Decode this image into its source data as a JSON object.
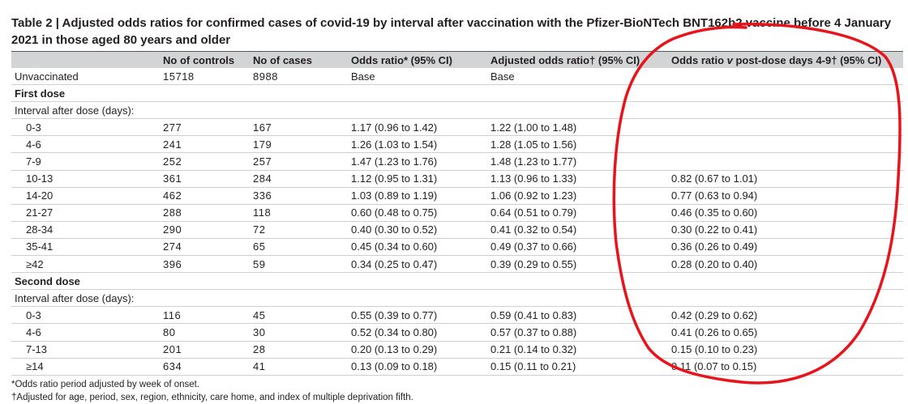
{
  "table": {
    "title": "Table 2 | Adjusted odds ratios for confirmed cases of covid-19 by interval after vaccination with the Pfizer-BioNTech BNT162b2 vaccine before 4 January 2021 in those aged 80 years and older",
    "headers": [
      "",
      "No of controls",
      "No of cases",
      "Odds ratio* (95% CI)",
      "Adjusted odds ratio† (95% CI)",
      "Odds ratio v post-dose days 4-9† (95% CI)"
    ],
    "unvaccinated": {
      "label": "Unvaccinated",
      "controls": "15718",
      "cases": "8988",
      "or": "Base",
      "aor": "Base",
      "or_v": ""
    },
    "first_dose": {
      "label": "First dose",
      "subheader": "Interval after dose (days):",
      "rows": [
        {
          "interval": "0-3",
          "controls": "277",
          "cases": "167",
          "or": "1.17 (0.96 to 1.42)",
          "aor": "1.22 (1.00 to 1.48)",
          "or_v": ""
        },
        {
          "interval": "4-6",
          "controls": "241",
          "cases": "179",
          "or": "1.26 (1.03 to 1.54)",
          "aor": "1.28 (1.05 to 1.56)",
          "or_v": ""
        },
        {
          "interval": "7-9",
          "controls": "252",
          "cases": "257",
          "or": "1.47 (1.23 to 1.76)",
          "aor": "1.48 (1.23 to 1.77)",
          "or_v": ""
        },
        {
          "interval": "10-13",
          "controls": "361",
          "cases": "284",
          "or": "1.12 (0.95 to 1.31)",
          "aor": "1.13 (0.96 to 1.33)",
          "or_v": "0.82 (0.67 to 1.01)"
        },
        {
          "interval": "14-20",
          "controls": "462",
          "cases": "336",
          "or": "1.03 (0.89 to 1.19)",
          "aor": "1.06 (0.92 to 1.23)",
          "or_v": "0.77 (0.63 to 0.94)"
        },
        {
          "interval": "21-27",
          "controls": "288",
          "cases": "118",
          "or": "0.60 (0.48 to 0.75)",
          "aor": "0.64 (0.51 to 0.79)",
          "or_v": "0.46 (0.35 to 0.60)"
        },
        {
          "interval": "28-34",
          "controls": "290",
          "cases": "72",
          "or": "0.40 (0.30 to 0.52)",
          "aor": "0.41 (0.32 to 0.54)",
          "or_v": "0.30 (0.22 to 0.41)"
        },
        {
          "interval": "35-41",
          "controls": "274",
          "cases": "65",
          "or": "0.45 (0.34 to 0.60)",
          "aor": "0.49 (0.37 to 0.66)",
          "or_v": "0.36 (0.26 to 0.49)"
        },
        {
          "interval": "≥42",
          "controls": "396",
          "cases": "59",
          "or": "0.34 (0.25 to 0.47)",
          "aor": "0.39 (0.29 to 0.55)",
          "or_v": "0.28 (0.20 to 0.40)"
        }
      ]
    },
    "second_dose": {
      "label": "Second dose",
      "subheader": "Interval after dose (days):",
      "rows": [
        {
          "interval": "0-3",
          "controls": "116",
          "cases": "45",
          "or": "0.55 (0.39 to 0.77)",
          "aor": "0.59 (0.41 to 0.83)",
          "or_v": "0.42 (0.29 to 0.62)"
        },
        {
          "interval": "4-6",
          "controls": "80",
          "cases": "30",
          "or": "0.52 (0.34 to 0.80)",
          "aor": "0.57 (0.37 to 0.88)",
          "or_v": "0.41 (0.26 to 0.65)"
        },
        {
          "interval": "7-13",
          "controls": "201",
          "cases": "28",
          "or": "0.20 (0.13 to 0.29)",
          "aor": "0.21 (0.14 to 0.32)",
          "or_v": "0.15 (0.10 to 0.23)"
        },
        {
          "interval": "≥14",
          "controls": "634",
          "cases": "41",
          "or": "0.13 (0.09 to 0.18)",
          "aor": "0.15 (0.11 to 0.21)",
          "or_v": "0.11 (0.07 to 0.15)"
        }
      ]
    },
    "footnotes": [
      "*Odds ratio period adjusted by week of onset.",
      "†Adjusted for age, period, sex, region, ethnicity, care home, and index of multiple deprivation fifth."
    ]
  },
  "annotation": {
    "color": "#e8141b"
  }
}
